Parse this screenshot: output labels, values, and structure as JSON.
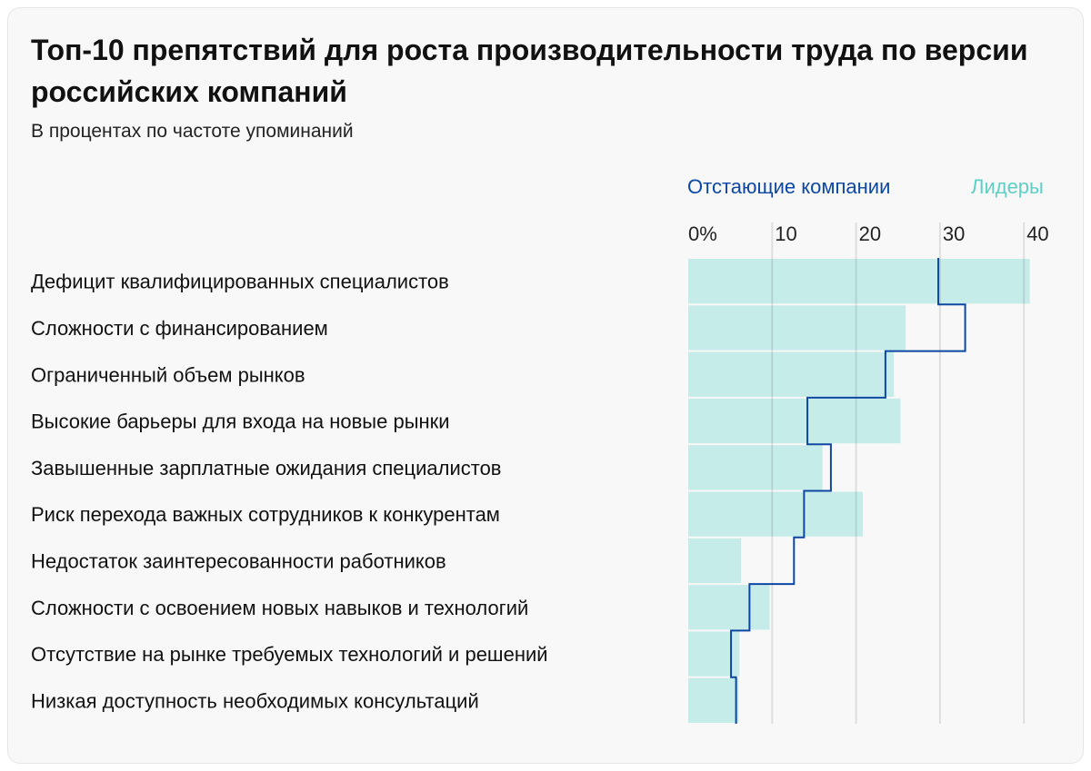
{
  "chart_data": {
    "type": "bar",
    "title": "Топ-10 препятствий для роста производительности труда по версии российских компаний",
    "subtitle": "В процентах по частоте упоминаний",
    "categories": [
      "Дефицит квалифицированных специалистов",
      "Сложности с финансированием",
      "Ограниченный объем рынков",
      "Высокие барьеры для входа на новые рынки",
      "Завышенные зарплатные ожидания специалистов",
      "Риск перехода важных сотрудников к конкурентам",
      "Недостаток заинтересованности работников",
      "Сложности с освоением новых навыков и технологий",
      "Отсутствие на рынке требуемых технологий и решений",
      "Низкая доступность необходимых консультаций"
    ],
    "series": [
      {
        "name": "Лидеры",
        "style": "bar",
        "color": "#c6ecea",
        "legend_color": "#5fcfc6",
        "values": [
          40.7,
          25.9,
          24.5,
          25.3,
          16.0,
          20.8,
          6.3,
          9.7,
          6.1,
          6.0
        ]
      },
      {
        "name": "Отстающие компании",
        "style": "step-line",
        "color": "#0d47a1",
        "values": [
          29.8,
          33.0,
          23.5,
          14.2,
          17.0,
          13.8,
          12.6,
          7.3,
          5.1,
          5.7
        ]
      }
    ],
    "x_ticks": [
      "0%",
      "10",
      "20",
      "30",
      "40"
    ],
    "xlim": [
      0,
      40
    ],
    "grid": true,
    "legend_placement": "top-right",
    "xlabel": "",
    "ylabel": ""
  }
}
